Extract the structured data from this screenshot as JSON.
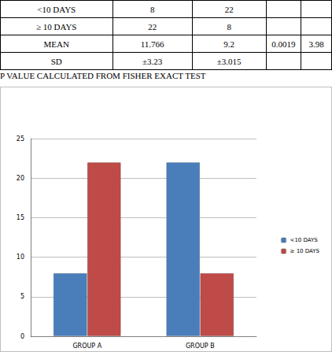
{
  "table": {
    "rows": [
      [
        "<10 DAYS",
        "8",
        "22",
        null,
        null
      ],
      [
        "≥ 10 DAYS",
        "22",
        "8",
        null,
        null
      ],
      [
        "MEAN",
        "11.766",
        "9.2",
        "0.0019",
        "3.98"
      ],
      [
        "SD",
        "±3.23",
        "±3.015",
        null,
        null
      ]
    ]
  },
  "caption": "P VALUE CALCULATED FROM FISHER EXACT TEST",
  "chart_data": {
    "type": "bar",
    "categories": [
      "GROUP A",
      "GROUP B"
    ],
    "series": [
      {
        "name": "<10 DAYS",
        "color": "#4a7ebb",
        "values": [
          8,
          22
        ]
      },
      {
        "name": "≥ 10 DAYS",
        "color": "#be4b48",
        "values": [
          22,
          8
        ]
      }
    ],
    "ylim": [
      0,
      25
    ],
    "yticks": [
      0,
      5,
      10,
      15,
      20,
      25
    ],
    "grid": true,
    "legend": "right"
  }
}
